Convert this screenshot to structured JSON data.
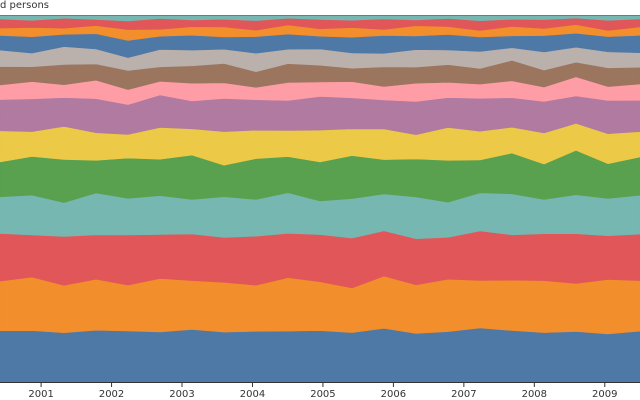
{
  "chart_data": {
    "type": "area",
    "stacked": true,
    "normalized": true,
    "title": "d persons",
    "xlabel": "",
    "ylabel": "",
    "grid": false,
    "x_ticks": [
      "2001",
      "2002",
      "2003",
      "2004",
      "2005",
      "2006",
      "2007",
      "2008",
      "2009"
    ],
    "x_range": [
      "2000-06",
      "2009-07"
    ],
    "series": [
      {
        "color": "#4e79a7",
        "values": [
          0.14,
          0.144,
          0.137,
          0.146,
          0.142,
          0.139,
          0.148,
          0.141,
          0.143,
          0.138,
          0.145,
          0.14,
          0.147,
          0.136,
          0.142,
          0.149,
          0.143,
          0.139,
          0.141,
          0.133,
          0.14
        ]
      },
      {
        "color": "#f28e2b",
        "values": [
          0.135,
          0.15,
          0.132,
          0.144,
          0.128,
          0.148,
          0.137,
          0.141,
          0.13,
          0.145,
          0.138,
          0.127,
          0.143,
          0.136,
          0.148,
          0.131,
          0.14,
          0.146,
          0.134,
          0.15,
          0.139
        ]
      },
      {
        "color": "#e15759",
        "values": [
          0.13,
          0.118,
          0.136,
          0.125,
          0.14,
          0.122,
          0.131,
          0.127,
          0.138,
          0.12,
          0.133,
          0.141,
          0.124,
          0.129,
          0.118,
          0.137,
          0.126,
          0.132,
          0.139,
          0.121,
          0.128
        ]
      },
      {
        "color": "#76b7b2",
        "values": [
          0.1,
          0.112,
          0.094,
          0.118,
          0.102,
          0.108,
          0.097,
          0.115,
          0.104,
          0.11,
          0.095,
          0.112,
          0.101,
          0.117,
          0.099,
          0.105,
          0.114,
          0.096,
          0.109,
          0.103,
          0.107
        ]
      },
      {
        "color": "#59a14f",
        "values": [
          0.095,
          0.108,
          0.12,
          0.092,
          0.112,
          0.101,
          0.125,
          0.089,
          0.115,
          0.098,
          0.11,
          0.122,
          0.094,
          0.106,
          0.118,
          0.091,
          0.113,
          0.1,
          0.124,
          0.096,
          0.105
        ]
      },
      {
        "color": "#edc948",
        "values": [
          0.085,
          0.07,
          0.092,
          0.078,
          0.066,
          0.088,
          0.074,
          0.095,
          0.08,
          0.071,
          0.09,
          0.076,
          0.084,
          0.068,
          0.093,
          0.079,
          0.072,
          0.087,
          0.075,
          0.083,
          0.07
        ]
      },
      {
        "color": "#b07aa1",
        "values": [
          0.085,
          0.092,
          0.08,
          0.096,
          0.083,
          0.09,
          0.078,
          0.094,
          0.086,
          0.081,
          0.095,
          0.088,
          0.079,
          0.093,
          0.084,
          0.091,
          0.082,
          0.089,
          0.077,
          0.092,
          0.086
        ]
      },
      {
        "color": "#ff9da7",
        "values": [
          0.04,
          0.048,
          0.036,
          0.052,
          0.042,
          0.038,
          0.05,
          0.044,
          0.035,
          0.049,
          0.041,
          0.046,
          0.037,
          0.051,
          0.043,
          0.039,
          0.047,
          0.04,
          0.053,
          0.038,
          0.045
        ]
      },
      {
        "color": "#9c755f",
        "values": [
          0.05,
          0.042,
          0.056,
          0.046,
          0.053,
          0.04,
          0.049,
          0.055,
          0.044,
          0.051,
          0.047,
          0.038,
          0.054,
          0.045,
          0.05,
          0.043,
          0.057,
          0.048,
          0.041,
          0.052,
          0.046
        ]
      },
      {
        "color": "#bab0ac",
        "values": [
          0.045,
          0.038,
          0.05,
          0.042,
          0.036,
          0.048,
          0.044,
          0.04,
          0.052,
          0.039,
          0.046,
          0.043,
          0.037,
          0.049,
          0.041,
          0.047,
          0.035,
          0.051,
          0.042,
          0.044,
          0.04
        ]
      },
      {
        "color": "#4e79a7",
        "values": [
          0.04,
          0.046,
          0.034,
          0.043,
          0.048,
          0.037,
          0.042,
          0.035,
          0.047,
          0.041,
          0.036,
          0.045,
          0.049,
          0.038,
          0.044,
          0.04,
          0.033,
          0.046,
          0.039,
          0.042,
          0.048
        ]
      },
      {
        "color": "#f28e2b",
        "values": [
          0.02,
          0.026,
          0.017,
          0.023,
          0.03,
          0.019,
          0.024,
          0.028,
          0.018,
          0.025,
          0.021,
          0.027,
          0.016,
          0.029,
          0.022,
          0.018,
          0.026,
          0.02,
          0.024,
          0.017,
          0.023
        ]
      },
      {
        "color": "#e15759",
        "values": [
          0.025,
          0.02,
          0.028,
          0.017,
          0.024,
          0.03,
          0.019,
          0.022,
          0.027,
          0.018,
          0.026,
          0.021,
          0.029,
          0.016,
          0.023,
          0.027,
          0.02,
          0.025,
          0.018,
          0.028,
          0.022
        ]
      },
      {
        "color": "#76b7b2",
        "values": [
          0.008,
          0.012,
          0.006,
          0.01,
          0.014,
          0.007,
          0.011,
          0.009,
          0.013,
          0.006,
          0.01,
          0.012,
          0.008,
          0.011,
          0.007,
          0.013,
          0.009,
          0.01,
          0.006,
          0.012,
          0.008
        ]
      }
    ]
  }
}
